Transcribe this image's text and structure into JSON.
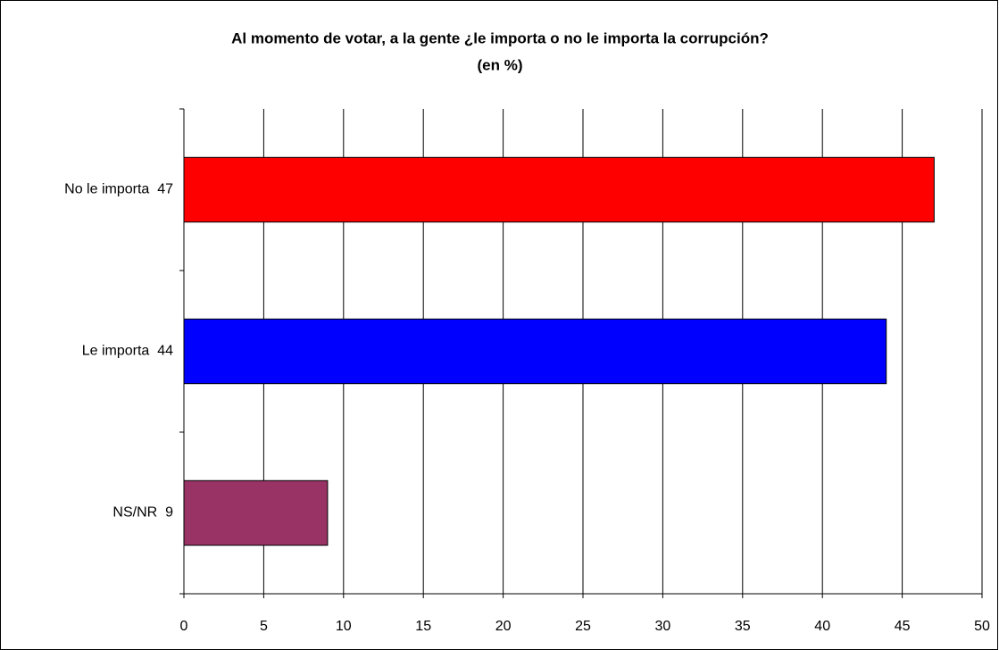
{
  "chart_data": {
    "type": "barh",
    "title": "Al momento de votar, a la gente ¿le importa o no le importa la corrupción?",
    "subtitle": "(en %)",
    "categories": [
      "No le importa  47",
      "Le importa  44",
      "NS/NR  9"
    ],
    "values": [
      47,
      44,
      9
    ],
    "colors": [
      "#ff0000",
      "#0000ff",
      "#993366"
    ],
    "xlim": [
      0,
      50
    ],
    "xticks": [
      0,
      5,
      10,
      15,
      20,
      25,
      30,
      35,
      40,
      45,
      50
    ],
    "grid": true
  }
}
